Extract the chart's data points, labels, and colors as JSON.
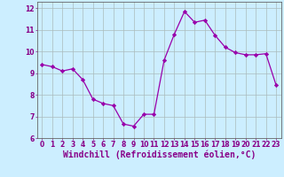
{
  "x": [
    0,
    1,
    2,
    3,
    4,
    5,
    6,
    7,
    8,
    9,
    10,
    11,
    12,
    13,
    14,
    15,
    16,
    17,
    18,
    19,
    20,
    21,
    22,
    23
  ],
  "y": [
    9.4,
    9.3,
    9.1,
    9.2,
    8.7,
    7.8,
    7.6,
    7.5,
    6.65,
    6.55,
    7.1,
    7.1,
    9.6,
    10.8,
    11.85,
    11.35,
    11.45,
    10.75,
    10.2,
    9.95,
    9.85,
    9.85,
    9.9,
    8.45
  ],
  "line_color": "#9900aa",
  "marker": "D",
  "marker_size": 2.2,
  "bg_color": "#cceeff",
  "grid_color": "#aabbbb",
  "xlabel": "Windchill (Refroidissement éolien,°C)",
  "xlim": [
    -0.5,
    23.5
  ],
  "ylim": [
    6,
    12.3
  ],
  "yticks": [
    6,
    7,
    8,
    9,
    10,
    11,
    12
  ],
  "xticks": [
    0,
    1,
    2,
    3,
    4,
    5,
    6,
    7,
    8,
    9,
    10,
    11,
    12,
    13,
    14,
    15,
    16,
    17,
    18,
    19,
    20,
    21,
    22,
    23
  ],
  "tick_label_fontsize": 5.5,
  "xlabel_fontsize": 7.0
}
